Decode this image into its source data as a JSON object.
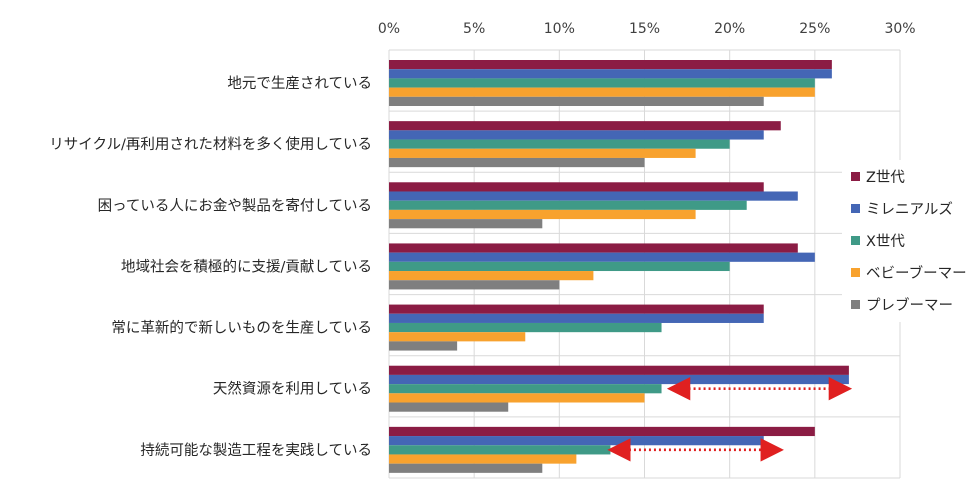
{
  "chart_data": {
    "type": "bar",
    "orientation": "horizontal",
    "categories": [
      "地元で生産されている",
      "リサイクル/再利用された材料を多く使用している",
      "困っている人にお金や製品を寄付している",
      "地域社会を積極的に支援/貢献している",
      "常に革新的で新しいものを生産している",
      "天然資源を利用している",
      "持続可能な製造工程を実践している"
    ],
    "series": [
      {
        "name": "Z世代",
        "color": "#8b1c44",
        "values": [
          26,
          23,
          22,
          24,
          22,
          27,
          25
        ]
      },
      {
        "name": "ミレニアルズ",
        "color": "#4466b5",
        "values": [
          26,
          22,
          24,
          25,
          22,
          27,
          22
        ]
      },
      {
        "name": "X世代",
        "color": "#3f9a87",
        "values": [
          25,
          20,
          21,
          20,
          16,
          16,
          13
        ]
      },
      {
        "name": "ベビーブーマー",
        "color": "#f8a22e",
        "values": [
          25,
          18,
          18,
          12,
          8,
          15,
          11
        ]
      },
      {
        "name": "プレブーマー",
        "color": "#7f7f7f",
        "values": [
          22,
          15,
          9,
          10,
          4,
          7,
          9
        ]
      }
    ],
    "x_ticks": [
      "0%",
      "5%",
      "10%",
      "15%",
      "20%",
      "25%",
      "30%"
    ],
    "xlim": [
      0,
      30
    ],
    "x_axis_position": "top",
    "grid": true,
    "legend_position": "right",
    "annotations": [
      {
        "type": "double-arrow",
        "color": "#e02020",
        "style": "dotted",
        "category_index": 5,
        "from": 17,
        "to": 26.5
      },
      {
        "type": "double-arrow",
        "color": "#e02020",
        "style": "dotted",
        "category_index": 6,
        "from": 13.5,
        "to": 22.5
      }
    ]
  }
}
